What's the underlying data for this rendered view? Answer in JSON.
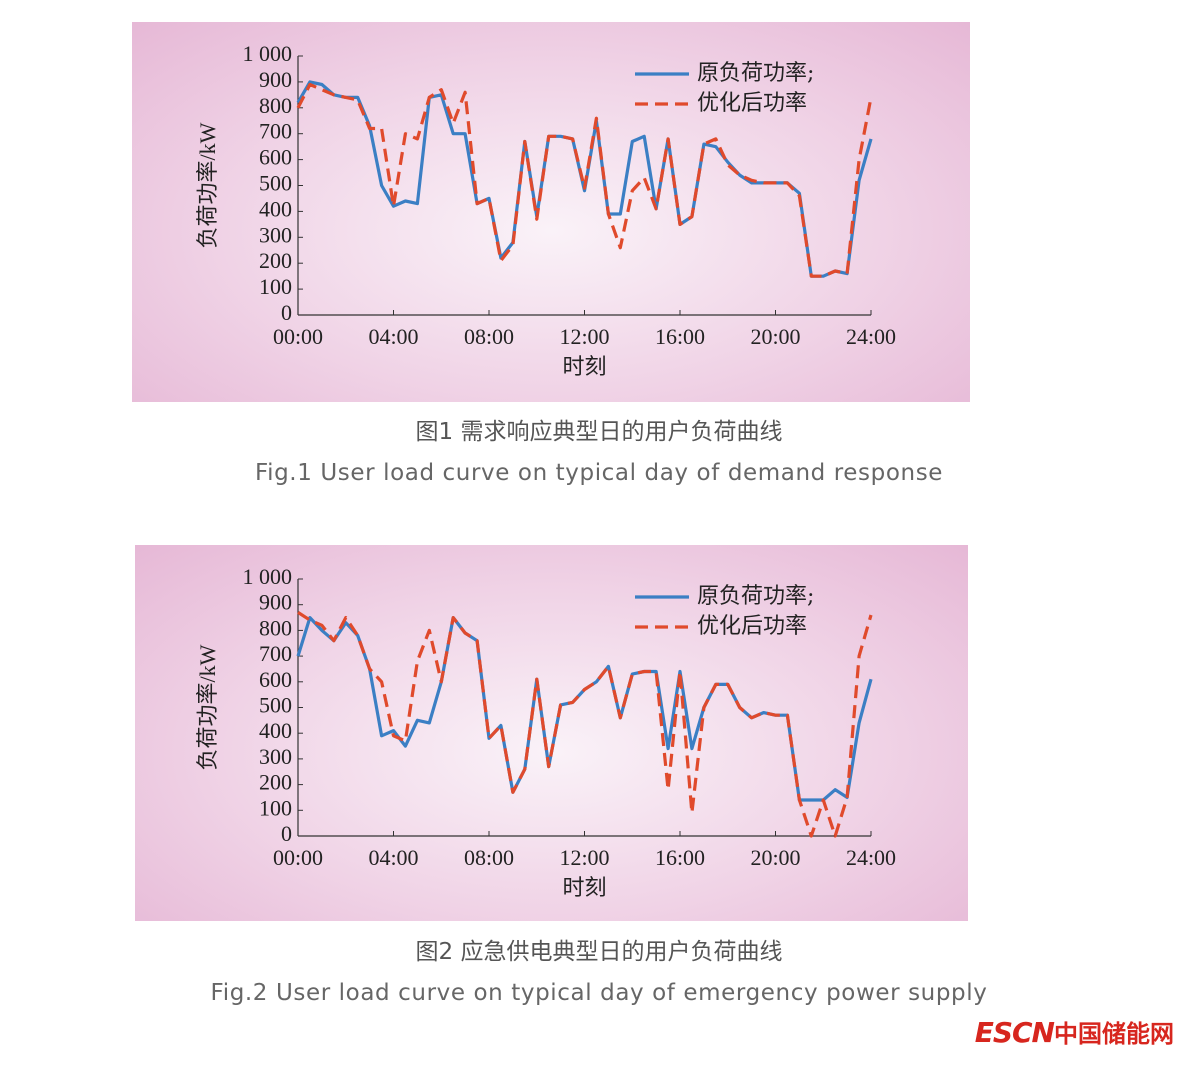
{
  "chart_data": [
    {
      "type": "line",
      "caption": "图1  需求响应典型日的用户负荷曲线",
      "caption_en": "Fig.1  User load curve on typical day of demand response",
      "x_label": "时刻",
      "y_label": "负荷功率/kW",
      "x": [
        0,
        0.5,
        1,
        1.5,
        2,
        2.5,
        3,
        3.5,
        4,
        4.5,
        5,
        5.5,
        6,
        6.5,
        7,
        7.5,
        8,
        8.5,
        9,
        9.5,
        10,
        10.5,
        11,
        11.5,
        12,
        12.5,
        13,
        13.5,
        14,
        14.5,
        15,
        15.5,
        16,
        16.5,
        17,
        17.5,
        18,
        18.5,
        19,
        19.5,
        20,
        20.5,
        21,
        21.5,
        22,
        22.5,
        23,
        23.5,
        24
      ],
      "series": [
        {
          "name": "原负荷功率;",
          "color": "#3b7fc4",
          "dashed": false,
          "values": [
            820,
            900,
            890,
            850,
            840,
            840,
            730,
            500,
            420,
            440,
            430,
            840,
            850,
            700,
            700,
            430,
            450,
            220,
            280,
            670,
            380,
            690,
            690,
            680,
            480,
            750,
            390,
            390,
            670,
            690,
            410,
            680,
            350,
            380,
            660,
            650,
            590,
            540,
            510,
            510,
            510,
            510,
            470,
            150,
            150,
            170,
            160,
            520,
            680
          ]
        },
        {
          "name": "优化后功率",
          "color": "#e04a2c",
          "dashed": true,
          "values": [
            800,
            890,
            870,
            850,
            840,
            830,
            720,
            720,
            420,
            700,
            680,
            840,
            870,
            740,
            860,
            430,
            450,
            210,
            270,
            670,
            370,
            690,
            690,
            680,
            490,
            760,
            390,
            260,
            480,
            530,
            410,
            680,
            350,
            380,
            660,
            680,
            580,
            540,
            520,
            510,
            510,
            510,
            460,
            150,
            150,
            170,
            160,
            600,
            840
          ]
        }
      ],
      "xlim": [
        0,
        24
      ],
      "ylim": [
        0,
        1000
      ],
      "xticks": [
        {
          "value": 0,
          "label": "00:00"
        },
        {
          "value": 4,
          "label": "04:00"
        },
        {
          "value": 8,
          "label": "08:00"
        },
        {
          "value": 12,
          "label": "12:00"
        },
        {
          "value": 16,
          "label": "16:00"
        },
        {
          "value": 20,
          "label": "20:00"
        },
        {
          "value": 24,
          "label": "24:00"
        }
      ],
      "yticks": [
        0,
        100,
        200,
        300,
        400,
        500,
        600,
        700,
        800,
        900,
        {
          "value": 1000,
          "label": "1 000"
        }
      ],
      "legend": "upper-right"
    },
    {
      "type": "line",
      "caption": "图2  应急供电典型日的用户负荷曲线",
      "caption_en": "Fig.2  User load curve on typical day of emergency power supply",
      "x_label": "时刻",
      "y_label": "负荷功率/kW",
      "x": [
        0,
        0.5,
        1,
        1.5,
        2,
        2.5,
        3,
        3.5,
        4,
        4.5,
        5,
        5.5,
        6,
        6.5,
        7,
        7.5,
        8,
        8.5,
        9,
        9.5,
        10,
        10.5,
        11,
        11.5,
        12,
        12.5,
        13,
        13.5,
        14,
        14.5,
        15,
        15.5,
        16,
        16.5,
        17,
        17.5,
        18,
        18.5,
        19,
        19.5,
        20,
        20.5,
        21,
        21.5,
        22,
        22.5,
        23,
        23.5,
        24
      ],
      "series": [
        {
          "name": "原负荷功率;",
          "color": "#3b7fc4",
          "dashed": false,
          "values": [
            700,
            850,
            800,
            760,
            830,
            780,
            650,
            390,
            410,
            350,
            450,
            440,
            600,
            850,
            790,
            760,
            380,
            430,
            170,
            260,
            610,
            270,
            510,
            520,
            570,
            600,
            660,
            460,
            630,
            640,
            640,
            340,
            640,
            340,
            500,
            590,
            590,
            500,
            460,
            480,
            470,
            470,
            140,
            140,
            140,
            180,
            150,
            440,
            610
          ]
        },
        {
          "name": "优化后功率",
          "color": "#e04a2c",
          "dashed": true,
          "values": [
            870,
            840,
            820,
            760,
            850,
            780,
            650,
            600,
            390,
            370,
            680,
            800,
            600,
            850,
            790,
            760,
            380,
            430,
            170,
            260,
            610,
            270,
            510,
            520,
            570,
            600,
            660,
            460,
            630,
            640,
            640,
            180,
            640,
            90,
            500,
            590,
            590,
            500,
            460,
            480,
            470,
            470,
            140,
            0,
            140,
            0,
            150,
            700,
            860
          ]
        }
      ],
      "xlim": [
        0,
        24
      ],
      "ylim": [
        0,
        1000
      ],
      "xticks": [
        {
          "value": 0,
          "label": "00:00"
        },
        {
          "value": 4,
          "label": "04:00"
        },
        {
          "value": 8,
          "label": "08:00"
        },
        {
          "value": 12,
          "label": "12:00"
        },
        {
          "value": 16,
          "label": "16:00"
        },
        {
          "value": 20,
          "label": "20:00"
        },
        {
          "value": 24,
          "label": "24:00"
        }
      ],
      "yticks": [
        0,
        100,
        200,
        300,
        400,
        500,
        600,
        700,
        800,
        900,
        {
          "value": 1000,
          "label": "1 000"
        }
      ],
      "legend": "upper-right"
    }
  ],
  "watermark": {
    "brand": "ESCN",
    "site": "中国储能网"
  }
}
